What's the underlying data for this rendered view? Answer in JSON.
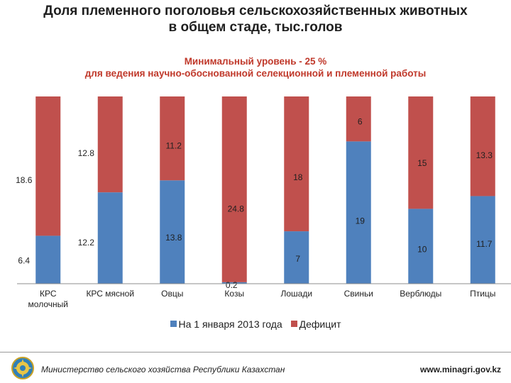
{
  "header": {
    "title_line1": "Доля племенного поголовья сельскохозяйственных животных",
    "title_line2": "в общем стаде, тыс.голов",
    "subtitle_line1": "Минимальный уровень - 25 %",
    "subtitle_line2": "для ведения научно-обоснованной селекционной и племенной работы"
  },
  "colors": {
    "series1": "#4f81bd",
    "series2": "#c0504d"
  },
  "chart_data": {
    "type": "bar",
    "stacked": "percent",
    "categories": [
      "КРС молочный",
      "КРС мясной",
      "Овцы",
      "Козы",
      "Лошади",
      "Свиньи",
      "Верблюды",
      "Птицы"
    ],
    "series": [
      {
        "name": "На 1 января 2013 года",
        "values": [
          6.4,
          12.2,
          13.8,
          0.2,
          7,
          19,
          10,
          11.7
        ]
      },
      {
        "name": "Дефицит",
        "values": [
          18.6,
          12.8,
          11.2,
          24.8,
          18,
          6,
          15,
          13.3
        ]
      }
    ],
    "legend_position": "bottom"
  },
  "footer": {
    "ministry": "Министерство сельского хозяйства Республики Казахстан",
    "website": "www.minagri.gov.kz"
  }
}
